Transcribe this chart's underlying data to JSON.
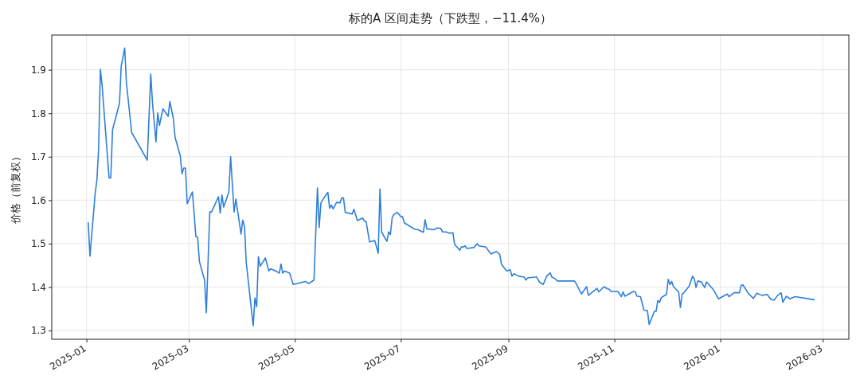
{
  "chart_data": {
    "type": "line",
    "title": "标的A 区间走势（下跌型，−11.4%）",
    "ylabel": "价格（前复权）",
    "x": [
      "2025-01-02",
      "2025-01-03",
      "2025-01-06",
      "2025-01-07",
      "2025-01-08",
      "2025-01-09",
      "2025-01-10",
      "2025-01-12",
      "2025-01-14",
      "2025-01-15",
      "2025-01-16",
      "2025-01-20",
      "2025-01-21",
      "2025-01-23",
      "2025-01-24",
      "2025-01-27",
      "2025-02-05",
      "2025-02-07",
      "2025-02-08",
      "2025-02-10",
      "2025-02-11",
      "2025-02-12",
      "2025-02-14",
      "2025-02-17",
      "2025-02-18",
      "2025-02-20",
      "2025-02-21",
      "2025-02-24",
      "2025-02-25",
      "2025-02-26",
      "2025-02-27",
      "2025-02-28",
      "2025-03-03",
      "2025-03-05",
      "2025-03-06",
      "2025-03-07",
      "2025-03-10",
      "2025-03-11",
      "2025-03-13",
      "2025-03-14",
      "2025-03-18",
      "2025-03-19",
      "2025-03-20",
      "2025-03-21",
      "2025-03-24",
      "2025-03-25",
      "2025-03-27",
      "2025-03-28",
      "2025-03-31",
      "2025-04-01",
      "2025-04-02",
      "2025-04-03",
      "2025-04-07",
      "2025-04-08",
      "2025-04-09",
      "2025-04-10",
      "2025-04-11",
      "2025-04-14",
      "2025-04-16",
      "2025-04-17",
      "2025-04-21",
      "2025-04-22",
      "2025-04-23",
      "2025-04-24",
      "2025-04-25",
      "2025-04-28",
      "2025-04-30",
      "2025-05-07",
      "2025-05-09",
      "2025-05-12",
      "2025-05-14",
      "2025-05-15",
      "2025-05-16",
      "2025-05-18",
      "2025-05-20",
      "2025-05-21",
      "2025-05-22",
      "2025-05-23",
      "2025-05-25",
      "2025-05-27",
      "2025-05-28",
      "2025-05-29",
      "2025-05-30",
      "2025-06-03",
      "2025-06-04",
      "2025-06-06",
      "2025-06-09",
      "2025-06-10",
      "2025-06-11",
      "2025-06-13",
      "2025-06-16",
      "2025-06-18",
      "2025-06-19",
      "2025-06-20",
      "2025-06-23",
      "2025-06-24",
      "2025-06-25",
      "2025-06-26",
      "2025-06-27",
      "2025-06-29",
      "2025-07-01",
      "2025-07-02",
      "2025-07-03",
      "2025-07-09",
      "2025-07-11",
      "2025-07-14",
      "2025-07-15",
      "2025-07-16",
      "2025-07-20",
      "2025-07-22",
      "2025-07-24",
      "2025-07-25",
      "2025-07-27",
      "2025-07-29",
      "2025-07-31",
      "2025-08-01",
      "2025-08-04",
      "2025-08-05",
      "2025-08-06",
      "2025-08-07",
      "2025-08-08",
      "2025-08-12",
      "2025-08-14",
      "2025-08-15",
      "2025-08-19",
      "2025-08-20",
      "2025-08-22",
      "2025-08-25",
      "2025-08-27",
      "2025-08-28",
      "2025-08-31",
      "2025-09-02",
      "2025-09-03",
      "2025-09-04",
      "2025-09-07",
      "2025-09-10",
      "2025-09-11",
      "2025-09-12",
      "2025-09-16",
      "2025-09-17",
      "2025-09-19",
      "2025-09-21",
      "2025-09-23",
      "2025-09-25",
      "2025-09-26",
      "2025-09-28",
      "2025-09-29",
      "2025-10-09",
      "2025-10-10",
      "2025-10-13",
      "2025-10-16",
      "2025-10-17",
      "2025-10-22",
      "2025-10-23",
      "2025-10-26",
      "2025-10-28",
      "2025-10-29",
      "2025-10-30",
      "2025-11-03",
      "2025-11-05",
      "2025-11-06",
      "2025-11-07",
      "2025-11-12",
      "2025-11-13",
      "2025-11-14",
      "2025-11-16",
      "2025-11-18",
      "2025-11-20",
      "2025-11-21",
      "2025-11-24",
      "2025-11-25",
      "2025-11-26",
      "2025-11-27",
      "2025-11-28",
      "2025-12-01",
      "2025-12-02",
      "2025-12-03",
      "2025-12-04",
      "2025-12-05",
      "2025-12-08",
      "2025-12-09",
      "2025-12-10",
      "2025-12-11",
      "2025-12-14",
      "2025-12-16",
      "2025-12-17",
      "2025-12-18",
      "2025-12-19",
      "2025-12-21",
      "2025-12-23",
      "2025-12-24",
      "2025-12-28",
      "2025-12-31",
      "2026-01-05",
      "2026-01-06",
      "2026-01-09",
      "2026-01-12",
      "2026-01-13",
      "2026-01-14",
      "2026-01-17",
      "2026-01-20",
      "2026-01-22",
      "2026-01-25",
      "2026-01-28",
      "2026-01-30",
      "2026-02-01",
      "2026-02-03",
      "2026-02-05",
      "2026-02-06",
      "2026-02-08",
      "2026-02-10",
      "2026-02-13",
      "2026-02-24"
    ],
    "series": [
      {
        "color": "#2e7fd9",
        "values": [
          1.548,
          1.471,
          1.616,
          1.646,
          1.72,
          1.901,
          1.864,
          1.757,
          1.651,
          1.651,
          1.762,
          1.823,
          1.909,
          1.95,
          1.87,
          1.756,
          1.692,
          1.89,
          1.824,
          1.734,
          1.801,
          1.772,
          1.81,
          1.793,
          1.827,
          1.788,
          1.745,
          1.702,
          1.661,
          1.674,
          1.674,
          1.592,
          1.619,
          1.516,
          1.515,
          1.459,
          1.416,
          1.341,
          1.573,
          1.573,
          1.608,
          1.57,
          1.612,
          1.584,
          1.619,
          1.7,
          1.573,
          1.603,
          1.522,
          1.554,
          1.539,
          1.456,
          1.311,
          1.375,
          1.355,
          1.47,
          1.448,
          1.467,
          1.437,
          1.442,
          1.435,
          1.432,
          1.453,
          1.432,
          1.437,
          1.432,
          1.406,
          1.413,
          1.408,
          1.416,
          1.628,
          1.537,
          1.594,
          1.607,
          1.618,
          1.581,
          1.589,
          1.58,
          1.595,
          1.594,
          1.605,
          1.605,
          1.572,
          1.568,
          1.579,
          1.553,
          1.559,
          1.552,
          1.551,
          1.504,
          1.507,
          1.478,
          1.626,
          1.526,
          1.505,
          1.527,
          1.521,
          1.559,
          1.567,
          1.572,
          1.562,
          1.562,
          1.548,
          1.533,
          1.532,
          1.526,
          1.555,
          1.534,
          1.532,
          1.536,
          1.535,
          1.527,
          1.527,
          1.524,
          1.525,
          1.498,
          1.485,
          1.493,
          1.492,
          1.495,
          1.489,
          1.491,
          1.5,
          1.495,
          1.492,
          1.486,
          1.476,
          1.482,
          1.475,
          1.452,
          1.437,
          1.44,
          1.425,
          1.431,
          1.425,
          1.423,
          1.416,
          1.421,
          1.423,
          1.424,
          1.411,
          1.406,
          1.425,
          1.433,
          1.423,
          1.419,
          1.414,
          1.414,
          1.408,
          1.384,
          1.401,
          1.381,
          1.397,
          1.389,
          1.401,
          1.396,
          1.395,
          1.39,
          1.39,
          1.378,
          1.389,
          1.379,
          1.39,
          1.389,
          1.379,
          1.378,
          1.347,
          1.346,
          1.314,
          1.344,
          1.344,
          1.369,
          1.365,
          1.376,
          1.383,
          1.418,
          1.406,
          1.413,
          1.401,
          1.389,
          1.353,
          1.384,
          1.387,
          1.402,
          1.425,
          1.419,
          1.399,
          1.414,
          1.412,
          1.399,
          1.412,
          1.394,
          1.373,
          1.384,
          1.378,
          1.387,
          1.387,
          1.404,
          1.405,
          1.386,
          1.374,
          1.386,
          1.381,
          1.383,
          1.372,
          1.37,
          1.381,
          1.387,
          1.365,
          1.379,
          1.373,
          1.378,
          1.371
        ]
      }
    ],
    "xlim": [
      "2024-12-12",
      "2026-03-16"
    ],
    "xticks": [
      "2025-01",
      "2025-03",
      "2025-05",
      "2025-07",
      "2025-09",
      "2025-11",
      "2026-01",
      "2026-03"
    ],
    "ylim": [
      1.28,
      1.98
    ],
    "yticks": [
      1.3,
      1.4,
      1.5,
      1.6,
      1.7,
      1.8,
      1.9
    ],
    "grid": true
  }
}
